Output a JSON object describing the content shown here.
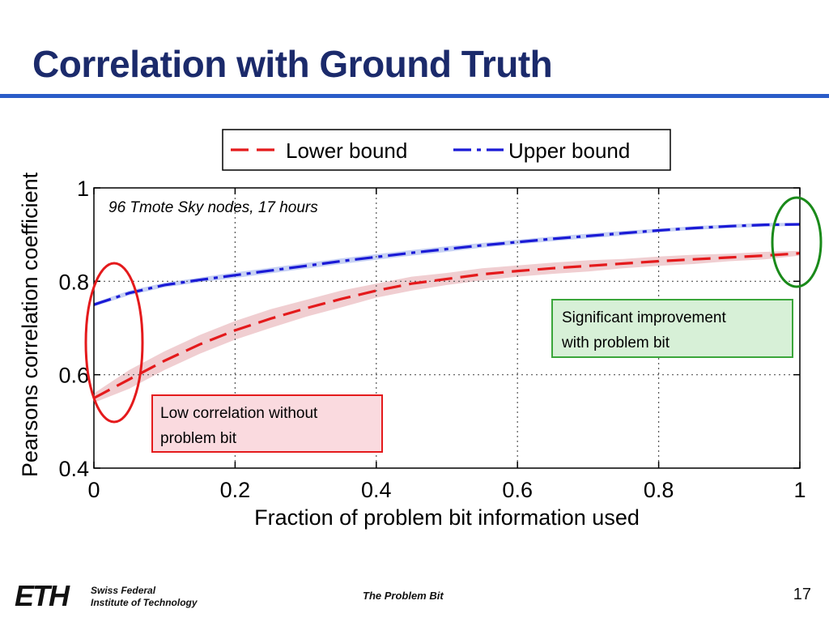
{
  "slide": {
    "title": "Correlation with Ground Truth",
    "footer": {
      "logo": "ETH",
      "institution_line1": "Swiss Federal",
      "institution_line2": "Institute of Technology",
      "center": "The Problem Bit",
      "page": "17"
    },
    "colors": {
      "title": "#1b2a6b",
      "rule": "#2a5cc8"
    }
  },
  "chart_data": {
    "type": "line",
    "xlabel": "Fraction of problem bit information used",
    "ylabel": "Pearsons correlation coefficient",
    "xlim": [
      0,
      1
    ],
    "ylim": [
      0.4,
      1
    ],
    "xticks": [
      0,
      0.2,
      0.4,
      0.6,
      0.8,
      1
    ],
    "xtick_labels": [
      "0",
      "0.2",
      "0.4",
      "0.6",
      "0.8",
      "1"
    ],
    "yticks": [
      0.4,
      0.6,
      0.8,
      1
    ],
    "ytick_labels": [
      "0.4",
      "0.6",
      "0.8",
      "1"
    ],
    "grid": true,
    "legend_position": "top",
    "annotation": "96 Tmote Sky nodes, 17 hours",
    "x": [
      0,
      0.05,
      0.1,
      0.15,
      0.2,
      0.25,
      0.3,
      0.35,
      0.4,
      0.45,
      0.5,
      0.55,
      0.6,
      0.65,
      0.7,
      0.75,
      0.8,
      0.85,
      0.9,
      0.95,
      1.0
    ],
    "series": [
      {
        "name": "Lower bound",
        "color": "#e41a1c",
        "band_color": "#e8b4b8",
        "values": [
          0.55,
          0.59,
          0.63,
          0.665,
          0.695,
          0.72,
          0.742,
          0.762,
          0.78,
          0.795,
          0.805,
          0.815,
          0.822,
          0.828,
          0.833,
          0.838,
          0.843,
          0.847,
          0.851,
          0.855,
          0.86
        ],
        "band": [
          0.01,
          0.02,
          0.02,
          0.02,
          0.02,
          0.02,
          0.018,
          0.018,
          0.015,
          0.015,
          0.013,
          0.013,
          0.012,
          0.012,
          0.012,
          0.01,
          0.01,
          0.01,
          0.008,
          0.008,
          0.005
        ]
      },
      {
        "name": "Upper bound",
        "color": "#1a1ad6",
        "band_color": "#a9b9ee",
        "values": [
          0.75,
          0.775,
          0.792,
          0.803,
          0.813,
          0.823,
          0.833,
          0.843,
          0.852,
          0.861,
          0.869,
          0.877,
          0.884,
          0.891,
          0.897,
          0.903,
          0.909,
          0.914,
          0.918,
          0.921,
          0.922
        ],
        "band": [
          0.004,
          0.005,
          0.005,
          0.005,
          0.006,
          0.006,
          0.006,
          0.006,
          0.006,
          0.006,
          0.006,
          0.005,
          0.005,
          0.005,
          0.005,
          0.005,
          0.004,
          0.004,
          0.004,
          0.004,
          0.003
        ]
      }
    ],
    "callouts": [
      {
        "text_line1": "Significant improvement",
        "text_line2": "with problem bit",
        "fill": "#d7f0d7",
        "stroke": "#3aa63a"
      },
      {
        "text_line1": "Low correlation without",
        "text_line2": "problem bit",
        "fill": "#fadadf",
        "stroke": "#e41a1c"
      }
    ],
    "highlight_ellipses": [
      {
        "name": "low-start-ellipse",
        "color": "#e41a1c"
      },
      {
        "name": "high-end-ellipse",
        "color": "#1a8a1a"
      }
    ]
  }
}
